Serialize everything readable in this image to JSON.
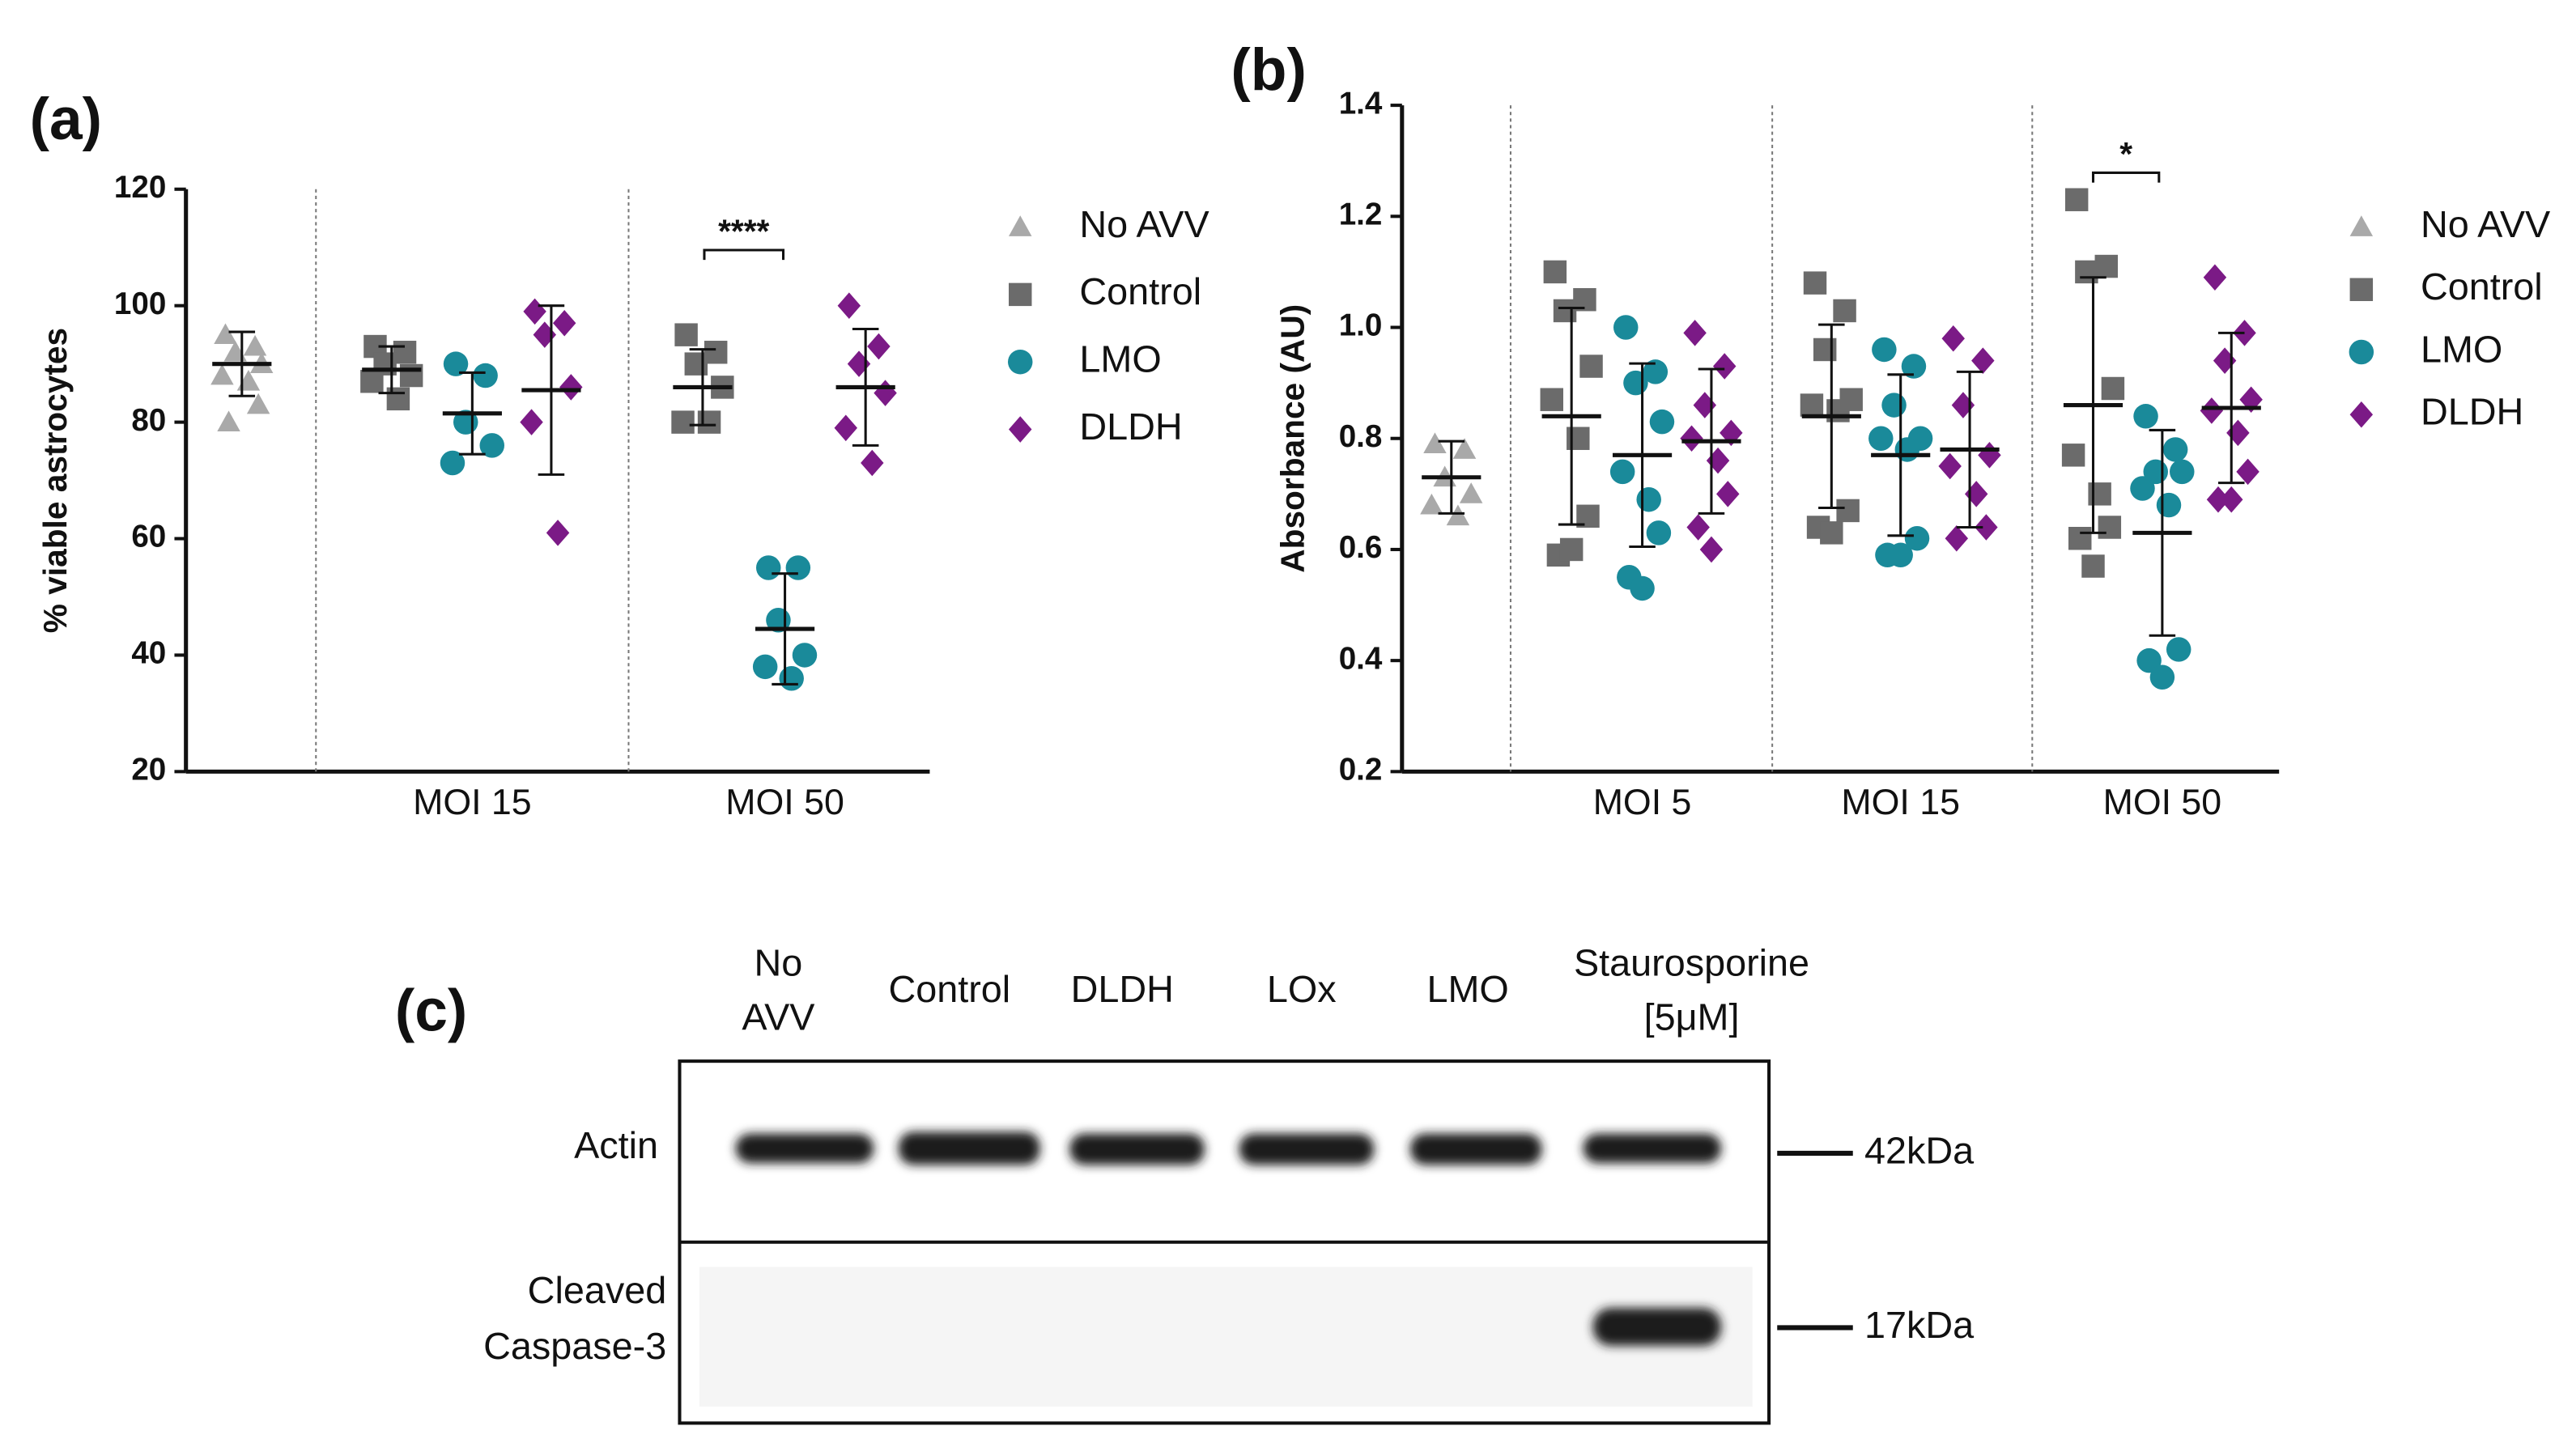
{
  "chart_data": [
    {
      "type": "dot",
      "panel": "(a)",
      "ylabel": "% viable astrocytes",
      "ylim": [
        20,
        120
      ],
      "yticks": [
        20,
        40,
        60,
        80,
        100,
        120
      ],
      "group_labels": [
        null,
        "MOI 15",
        "MOI 50"
      ],
      "annotations": [
        "****"
      ],
      "series": [
        {
          "name": "No AVV",
          "color": "#a9a9a9",
          "marker": "triangle",
          "groups": [
            [
              95,
              93,
              92,
              90,
              88,
              87,
              83,
              80
            ],
            null,
            null
          ],
          "mean": [
            90,
            null,
            null
          ],
          "sd": [
            5.5,
            null,
            null
          ]
        },
        {
          "name": "Control",
          "color": "#6b6b6b",
          "marker": "square",
          "groups": [
            null,
            [
              93,
              92,
              90,
              88,
              87,
              84
            ],
            [
              95,
              92,
              90,
              86,
              80,
              80
            ]
          ],
          "mean": [
            null,
            89,
            86
          ],
          "sd": [
            null,
            4,
            6.5
          ]
        },
        {
          "name": "LMO",
          "color": "#1a8a9a",
          "marker": "circle",
          "groups": [
            null,
            [
              90,
              88,
              80,
              76,
              73
            ],
            [
              55,
              55,
              46,
              40,
              38,
              36
            ]
          ],
          "mean": [
            null,
            81.5,
            44.5
          ],
          "sd": [
            null,
            7,
            9.5
          ]
        },
        {
          "name": "DLDH",
          "color": "#7b1a86",
          "marker": "diamond",
          "groups": [
            null,
            [
              99,
              97,
              95,
              86,
              80,
              61
            ],
            [
              100,
              93,
              90,
              85,
              79,
              73
            ]
          ],
          "mean": [
            null,
            85.5,
            86
          ],
          "sd": [
            null,
            14.5,
            10
          ]
        }
      ]
    },
    {
      "type": "dot",
      "panel": "(b)",
      "ylabel": "Absorbance (AU)",
      "ylim": [
        0.2,
        1.4
      ],
      "yticks": [
        0.2,
        0.4,
        0.6,
        0.8,
        {
          "value": 1,
          "label": "1.0"
        },
        1.2,
        1.4
      ],
      "group_labels": [
        null,
        "MOI 5",
        "MOI 15",
        "MOI 50"
      ],
      "annotations": [
        "*"
      ],
      "series": [
        {
          "name": "No AVV",
          "color": "#a9a9a9",
          "marker": "triangle",
          "groups": [
            [
              0.79,
              0.78,
              0.73,
              0.7,
              0.68,
              0.66
            ],
            null,
            null,
            null
          ],
          "mean": [
            0.73,
            null,
            null,
            null
          ],
          "sd": [
            0.065,
            null,
            null,
            null
          ]
        },
        {
          "name": "Control",
          "color": "#6b6b6b",
          "marker": "square",
          "groups": [
            null,
            [
              1.1,
              1.05,
              1.03,
              0.93,
              0.87,
              0.8,
              0.66,
              0.59,
              0.6
            ],
            [
              1.08,
              1.03,
              0.96,
              0.87,
              0.86,
              0.85,
              0.67,
              0.64,
              0.63
            ],
            [
              1.23,
              1.11,
              1.1,
              0.89,
              0.77,
              0.7,
              0.64,
              0.62,
              0.57
            ]
          ],
          "mean": [
            null,
            0.84,
            0.84,
            0.86
          ],
          "sd": [
            null,
            0.195,
            0.165,
            0.23
          ]
        },
        {
          "name": "LMO",
          "color": "#1a8a9a",
          "marker": "circle",
          "groups": [
            null,
            [
              1.0,
              0.92,
              0.9,
              0.83,
              0.74,
              0.69,
              0.63,
              0.55,
              0.53
            ],
            [
              0.96,
              0.93,
              0.86,
              0.8,
              0.8,
              0.78,
              0.62,
              0.59,
              0.59
            ],
            [
              0.84,
              0.78,
              0.74,
              0.74,
              0.71,
              0.68,
              0.42,
              0.4,
              0.37
            ]
          ],
          "mean": [
            null,
            0.77,
            0.77,
            0.63
          ],
          "sd": [
            null,
            0.165,
            0.145,
            0.185
          ]
        },
        {
          "name": "DLDH",
          "color": "#7b1a86",
          "marker": "diamond",
          "groups": [
            null,
            [
              0.99,
              0.93,
              0.86,
              0.81,
              0.8,
              0.76,
              0.7,
              0.64,
              0.6
            ],
            [
              0.98,
              0.94,
              0.86,
              0.77,
              0.75,
              0.7,
              0.64,
              0.62
            ],
            [
              1.09,
              0.99,
              0.94,
              0.87,
              0.85,
              0.81,
              0.74,
              0.69,
              0.69
            ]
          ],
          "mean": [
            null,
            0.795,
            0.78,
            0.855
          ],
          "sd": [
            null,
            0.13,
            0.14,
            0.135
          ]
        }
      ]
    }
  ],
  "blot": {
    "panel": "(c)",
    "lanes": [
      [
        "No",
        "AVV"
      ],
      [
        "Control"
      ],
      [
        "DLDH"
      ],
      [
        "LOx"
      ],
      [
        "LMO"
      ],
      [
        "Staurosporine",
        "[5μM]"
      ]
    ],
    "rows": [
      [
        "Actin"
      ],
      [
        "Cleaved",
        "Caspase-3"
      ]
    ],
    "markers": [
      "42kDa",
      "17kDa"
    ]
  }
}
